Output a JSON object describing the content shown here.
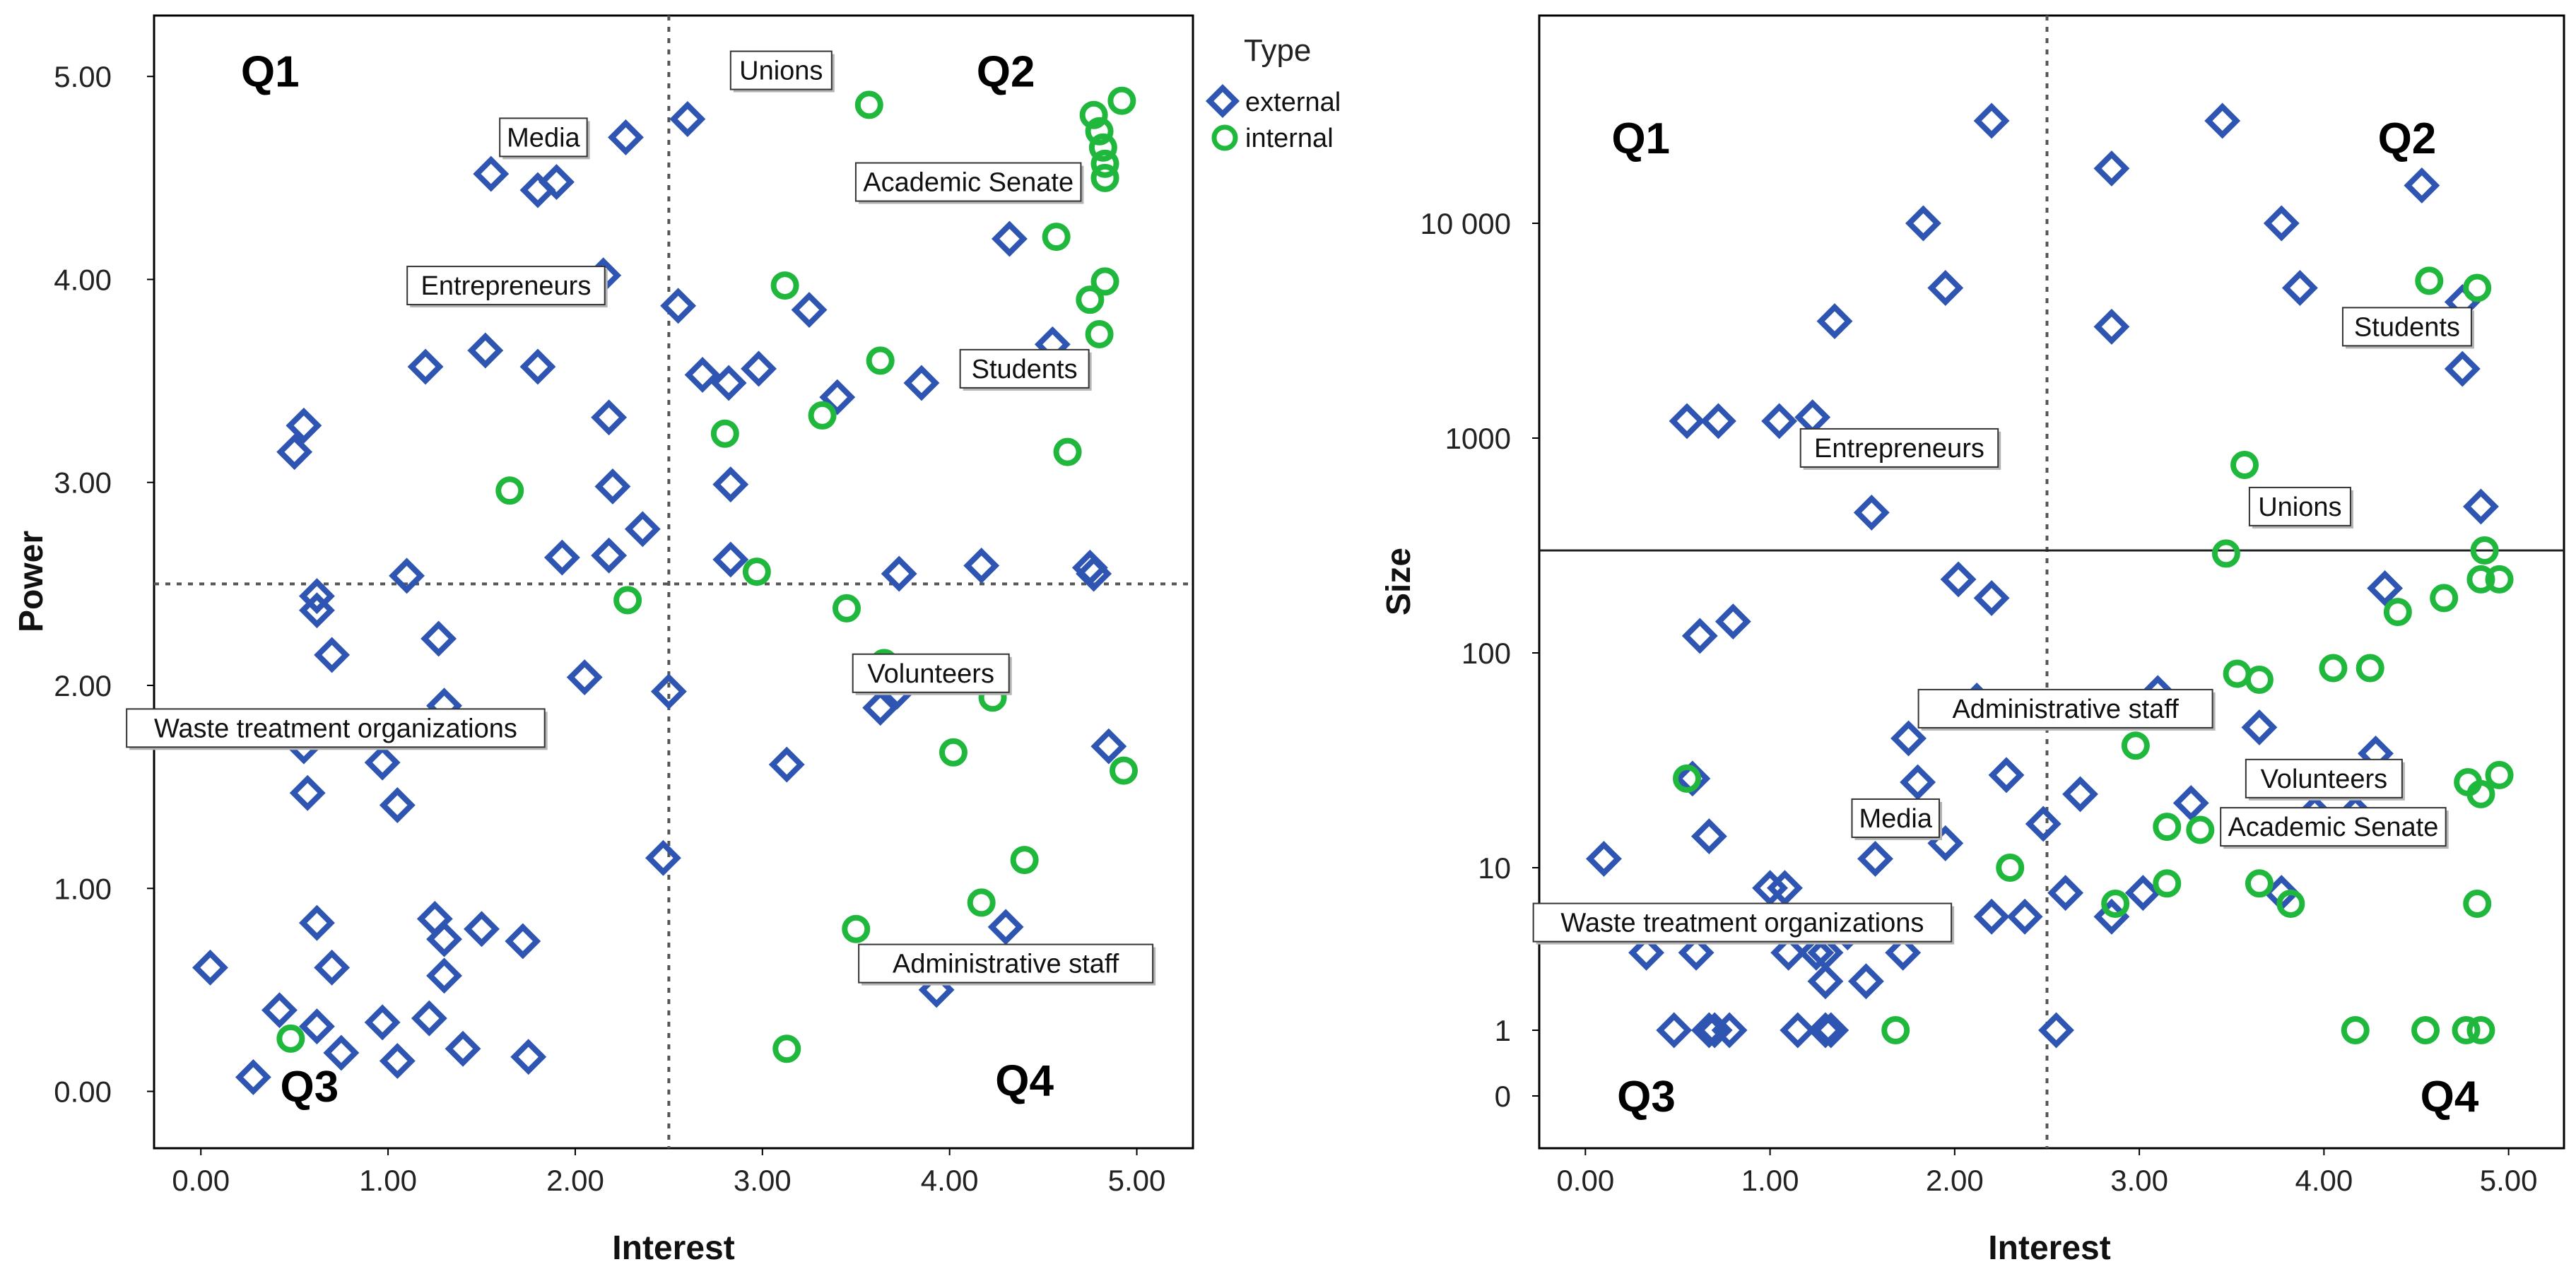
{
  "legend": {
    "title": "Type",
    "items": [
      {
        "name": "external",
        "color": "#2f55b3",
        "marker": "diamond"
      },
      {
        "name": "internal",
        "color": "#1fb83d",
        "marker": "circle"
      }
    ]
  },
  "chart_data": [
    {
      "type": "scatter",
      "xlabel": "Interest",
      "ylabel": "Power",
      "xlim": [
        -0.25,
        5.3
      ],
      "ylim": [
        -0.28,
        5.3
      ],
      "xticks": [
        0,
        1,
        2,
        3,
        4,
        5
      ],
      "xtick_labels": [
        "0.00",
        "1.00",
        "2.00",
        "3.00",
        "4.00",
        "5.00"
      ],
      "yticks": [
        0,
        1,
        2,
        3,
        4,
        5
      ],
      "ytick_labels": [
        "0.00",
        "1.00",
        "2.00",
        "3.00",
        "4.00",
        "5.00"
      ],
      "reference_lines": {
        "x": 2.5,
        "y": 2.5,
        "style": "dotted"
      },
      "quadrants": [
        {
          "label": "Q1",
          "x": 0.37,
          "y": 4.95
        },
        {
          "label": "Q2",
          "x": 4.3,
          "y": 4.95
        },
        {
          "label": "Q3",
          "x": 0.58,
          "y": -0.05
        },
        {
          "label": "Q4",
          "x": 4.4,
          "y": -0.02
        }
      ],
      "annotations": [
        {
          "text": "Unions",
          "x": 3.1,
          "y": 5.03
        },
        {
          "text": "Media",
          "x": 1.83,
          "y": 4.7
        },
        {
          "text": "Academic Senate",
          "x": 4.1,
          "y": 4.48
        },
        {
          "text": "Entrepreneurs",
          "x": 1.63,
          "y": 3.97
        },
        {
          "text": "Students",
          "x": 4.4,
          "y": 3.56
        },
        {
          "text": "Volunteers",
          "x": 3.9,
          "y": 2.06
        },
        {
          "text": "Waste treatment organizations",
          "x": 0.72,
          "y": 1.79
        },
        {
          "text": "Administrative staff",
          "x": 4.3,
          "y": 0.63
        }
      ],
      "series": [
        {
          "name": "external",
          "points": [
            [
              0.55,
              3.28
            ],
            [
              0.5,
              3.15
            ],
            [
              1.2,
              3.57
            ],
            [
              1.52,
              3.65
            ],
            [
              1.8,
              3.57
            ],
            [
              2.18,
              3.32
            ],
            [
              2.2,
              2.98
            ],
            [
              2.36,
              2.77
            ],
            [
              2.18,
              2.64
            ],
            [
              1.93,
              2.63
            ],
            [
              1.1,
              2.54
            ],
            [
              0.62,
              2.44
            ],
            [
              0.62,
              2.37
            ],
            [
              0.7,
              2.15
            ],
            [
              1.27,
              2.23
            ],
            [
              1.3,
              1.9
            ],
            [
              0.55,
              1.7
            ],
            [
              0.97,
              1.62
            ],
            [
              0.57,
              1.47
            ],
            [
              1.05,
              1.41
            ],
            [
              2.05,
              2.04
            ],
            [
              2.5,
              1.97
            ],
            [
              0.62,
              0.83
            ],
            [
              1.25,
              0.85
            ],
            [
              1.3,
              0.75
            ],
            [
              1.5,
              0.8
            ],
            [
              1.72,
              0.74
            ],
            [
              0.7,
              0.61
            ],
            [
              1.3,
              0.57
            ],
            [
              0.05,
              0.61
            ],
            [
              0.42,
              0.4
            ],
            [
              0.62,
              0.32
            ],
            [
              0.75,
              0.19
            ],
            [
              0.97,
              0.34
            ],
            [
              1.22,
              0.36
            ],
            [
              1.05,
              0.15
            ],
            [
              1.4,
              0.21
            ],
            [
              1.75,
              0.17
            ],
            [
              0.28,
              0.07
            ],
            [
              1.55,
              4.52
            ],
            [
              1.8,
              4.44
            ],
            [
              1.9,
              4.48
            ],
            [
              2.27,
              4.7
            ],
            [
              2.6,
              4.79
            ],
            [
              2.15,
              4.02
            ],
            [
              2.55,
              3.87
            ],
            [
              2.68,
              3.53
            ],
            [
              2.82,
              3.49
            ],
            [
              2.98,
              3.56
            ],
            [
              3.25,
              3.85
            ],
            [
              3.4,
              3.42
            ],
            [
              3.85,
              3.49
            ],
            [
              4.32,
              4.2
            ],
            [
              4.55,
              3.68
            ],
            [
              2.83,
              2.99
            ],
            [
              2.83,
              2.62
            ],
            [
              3.73,
              2.55
            ],
            [
              4.17,
              2.59
            ],
            [
              4.75,
              2.58
            ],
            [
              4.77,
              2.55
            ],
            [
              3.72,
              1.97
            ],
            [
              3.63,
              1.89
            ],
            [
              3.13,
              1.61
            ],
            [
              4.85,
              1.7
            ],
            [
              2.47,
              1.15
            ],
            [
              4.3,
              0.81
            ],
            [
              3.93,
              0.5
            ]
          ]
        },
        {
          "name": "internal",
          "points": [
            [
              3.57,
              4.86
            ],
            [
              4.77,
              4.81
            ],
            [
              4.8,
              4.73
            ],
            [
              4.82,
              4.65
            ],
            [
              4.83,
              4.57
            ],
            [
              4.83,
              4.5
            ],
            [
              4.92,
              4.88
            ],
            [
              4.57,
              4.21
            ],
            [
              3.12,
              3.97
            ],
            [
              4.75,
              3.9
            ],
            [
              4.83,
              3.99
            ],
            [
              4.8,
              3.73
            ],
            [
              3.63,
              3.6
            ],
            [
              3.32,
              3.33
            ],
            [
              2.8,
              3.24
            ],
            [
              4.63,
              3.15
            ],
            [
              1.65,
              2.96
            ],
            [
              2.97,
              2.56
            ],
            [
              2.28,
              2.42
            ],
            [
              3.45,
              2.38
            ],
            [
              3.65,
              2.11
            ],
            [
              4.23,
              1.94
            ],
            [
              4.02,
              1.67
            ],
            [
              4.93,
              1.58
            ],
            [
              4.4,
              1.14
            ],
            [
              4.17,
              0.93
            ],
            [
              3.5,
              0.8
            ],
            [
              0.48,
              0.26
            ],
            [
              3.13,
              0.21
            ]
          ]
        }
      ]
    },
    {
      "type": "scatter",
      "xlabel": "Interest",
      "ylabel": "Size",
      "y_scale": "log (0 plotted at bottom)",
      "xlim": [
        -0.25,
        5.3
      ],
      "xticks": [
        0,
        1,
        2,
        3,
        4,
        5
      ],
      "xtick_labels": [
        "0.00",
        "1.00",
        "2.00",
        "3.00",
        "4.00",
        "5.00"
      ],
      "yticks": [
        0,
        1,
        10,
        100,
        1000,
        10000
      ],
      "ytick_labels": [
        "0",
        "1",
        "10",
        "100",
        "1000",
        "10 000"
      ],
      "reference_lines": {
        "x": 2.5,
        "x_style": "dotted",
        "y": 300,
        "y_style": "solid"
      },
      "quadrants": [
        {
          "label": "Q1",
          "x": 0.3,
          "y": 25000
        },
        {
          "label": "Q2",
          "x": 4.45,
          "y": 25000
        },
        {
          "label": "Q3",
          "x": 0.33,
          "y": 0
        },
        {
          "label": "Q4",
          "x": 4.68,
          "y": 0
        }
      ],
      "annotations": [
        {
          "text": "Students",
          "x": 4.45,
          "y": 3300
        },
        {
          "text": "Entrepreneurs",
          "x": 1.7,
          "y": 900
        },
        {
          "text": "Unions",
          "x": 3.87,
          "y": 480
        },
        {
          "text": "Administrative staff",
          "x": 2.6,
          "y": 55
        },
        {
          "text": "Volunteers",
          "x": 4.0,
          "y": 26
        },
        {
          "text": "Media",
          "x": 1.68,
          "y": 17
        },
        {
          "text": "Academic Senate",
          "x": 4.05,
          "y": 15.5
        },
        {
          "text": "Waste treatment organizations",
          "x": 0.85,
          "y": 4.6
        }
      ],
      "series": [
        {
          "name": "external",
          "points": [
            [
              2.2,
              30000
            ],
            [
              3.45,
              30000
            ],
            [
              2.85,
              18000
            ],
            [
              4.53,
              15000
            ],
            [
              1.83,
              10000
            ],
            [
              3.77,
              10000
            ],
            [
              1.95,
              5000
            ],
            [
              3.87,
              5000
            ],
            [
              1.35,
              3500
            ],
            [
              2.85,
              3300
            ],
            [
              4.75,
              4300
            ],
            [
              4.75,
              2100
            ],
            [
              0.55,
              1200
            ],
            [
              0.72,
              1200
            ],
            [
              1.05,
              1200
            ],
            [
              1.23,
              1250
            ],
            [
              1.55,
              450
            ],
            [
              4.85,
              480
            ],
            [
              2.02,
              220
            ],
            [
              2.2,
              180
            ],
            [
              4.33,
              200
            ],
            [
              0.62,
              120
            ],
            [
              0.8,
              140
            ],
            [
              2.12,
              60
            ],
            [
              3.1,
              65
            ],
            [
              3.65,
              45
            ],
            [
              1.75,
              40
            ],
            [
              1.8,
              25
            ],
            [
              2.28,
              27
            ],
            [
              2.68,
              22
            ],
            [
              3.28,
              20
            ],
            [
              4.28,
              34
            ],
            [
              3.95,
              18
            ],
            [
              4.17,
              18
            ],
            [
              0.58,
              26
            ],
            [
              0.67,
              14
            ],
            [
              1.95,
              13
            ],
            [
              2.48,
              16
            ],
            [
              1.57,
              11
            ],
            [
              0.1,
              11
            ],
            [
              1.0,
              7.5
            ],
            [
              1.08,
              7.5
            ],
            [
              2.6,
              7.0
            ],
            [
              3.02,
              7.0
            ],
            [
              3.77,
              7.0
            ],
            [
              2.85,
              5.0
            ],
            [
              2.2,
              5.0
            ],
            [
              2.38,
              5.0
            ],
            [
              0.33,
              3.0
            ],
            [
              0.6,
              3.0
            ],
            [
              1.1,
              3.0
            ],
            [
              1.25,
              3.0
            ],
            [
              1.3,
              3.0
            ],
            [
              1.42,
              4.0
            ],
            [
              1.72,
              3.0
            ],
            [
              1.3,
              2.0
            ],
            [
              1.52,
              2.0
            ],
            [
              0.48,
              1.0
            ],
            [
              0.67,
              1.0
            ],
            [
              0.7,
              1.0
            ],
            [
              0.78,
              1.0
            ],
            [
              1.15,
              1.0
            ],
            [
              1.3,
              1.0
            ],
            [
              1.33,
              1.0
            ],
            [
              2.55,
              1.0
            ]
          ]
        },
        {
          "name": "internal",
          "points": [
            [
              4.57,
              5400
            ],
            [
              4.83,
              5000
            ],
            [
              3.57,
              750
            ],
            [
              3.47,
              290
            ],
            [
              4.87,
              300
            ],
            [
              4.85,
              220
            ],
            [
              4.95,
              220
            ],
            [
              4.65,
              180
            ],
            [
              4.4,
              155
            ],
            [
              3.53,
              80
            ],
            [
              3.65,
              75
            ],
            [
              4.05,
              85
            ],
            [
              4.25,
              85
            ],
            [
              2.98,
              37
            ],
            [
              4.78,
              25
            ],
            [
              4.85,
              22
            ],
            [
              4.95,
              27
            ],
            [
              0.55,
              26
            ],
            [
              3.15,
              15.5
            ],
            [
              3.33,
              15
            ],
            [
              2.3,
              10
            ],
            [
              3.15,
              8
            ],
            [
              3.65,
              8
            ],
            [
              2.87,
              6.0
            ],
            [
              3.82,
              6.0
            ],
            [
              4.83,
              6.0
            ],
            [
              1.68,
              1.0
            ],
            [
              4.17,
              1.0
            ],
            [
              4.55,
              1.0
            ],
            [
              4.77,
              1.0
            ],
            [
              4.85,
              1.0
            ]
          ]
        }
      ]
    }
  ]
}
